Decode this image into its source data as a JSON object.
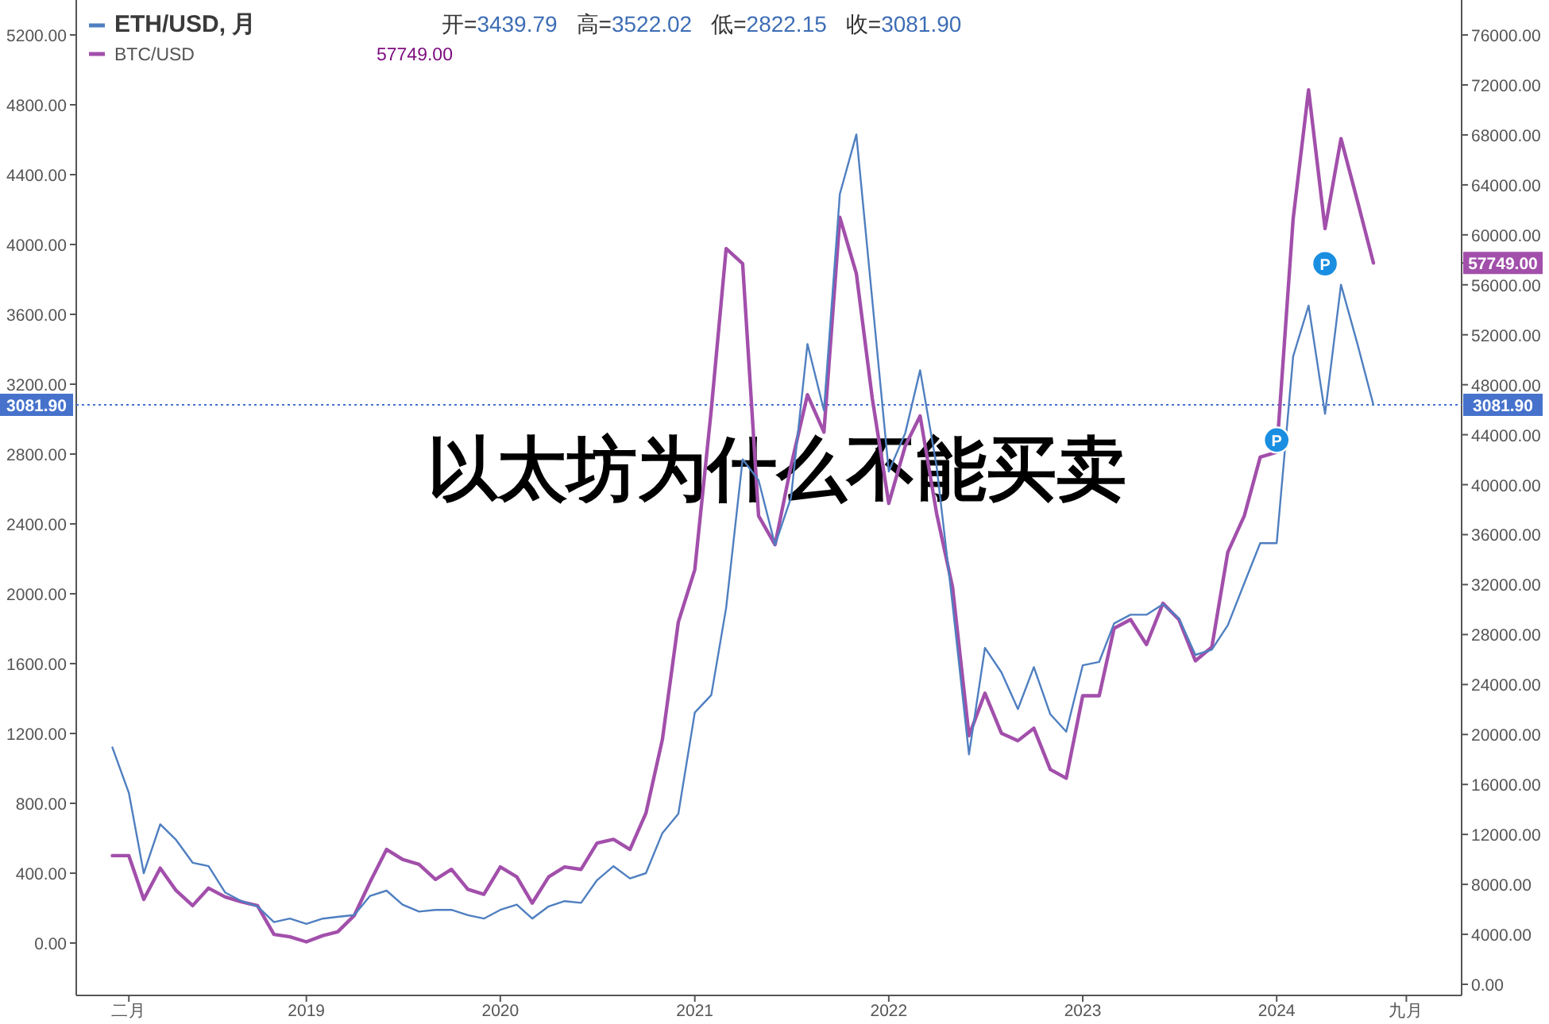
{
  "chart_data": {
    "type": "line",
    "title": "以太坊为什么不能买卖",
    "x": [
      "2018-01",
      "2018-02",
      "2018-03",
      "2018-04",
      "2018-05",
      "2018-06",
      "2018-07",
      "2018-08",
      "2018-09",
      "2018-10",
      "2018-11",
      "2018-12",
      "2019-01",
      "2019-02",
      "2019-03",
      "2019-04",
      "2019-05",
      "2019-06",
      "2019-07",
      "2019-08",
      "2019-09",
      "2019-10",
      "2019-11",
      "2019-12",
      "2020-01",
      "2020-02",
      "2020-03",
      "2020-04",
      "2020-05",
      "2020-06",
      "2020-07",
      "2020-08",
      "2020-09",
      "2020-10",
      "2020-11",
      "2020-12",
      "2021-01",
      "2021-02",
      "2021-03",
      "2021-04",
      "2021-05",
      "2021-06",
      "2021-07",
      "2021-08",
      "2021-09",
      "2021-10",
      "2021-11",
      "2021-12",
      "2022-01",
      "2022-02",
      "2022-03",
      "2022-04",
      "2022-05",
      "2022-06",
      "2022-07",
      "2022-08",
      "2022-09",
      "2022-10",
      "2022-11",
      "2022-12",
      "2023-01",
      "2023-02",
      "2023-03",
      "2023-04",
      "2023-05",
      "2023-06",
      "2023-07",
      "2023-08",
      "2023-09",
      "2023-10",
      "2023-11",
      "2023-12",
      "2024-01",
      "2024-02",
      "2024-03",
      "2024-04",
      "2024-05",
      "2024-06",
      "2024-07"
    ],
    "series": [
      {
        "name": "ETH/USD, 月",
        "color": "#4f7fc0",
        "values": [
          1120,
          860,
          400,
          680,
          590,
          460,
          440,
          290,
          240,
          210,
          120,
          140,
          110,
          140,
          150,
          160,
          270,
          300,
          220,
          180,
          190,
          190,
          160,
          140,
          190,
          220,
          140,
          210,
          240,
          230,
          360,
          440,
          370,
          400,
          630,
          740,
          1320,
          1420,
          1920,
          2770,
          2650,
          2280,
          2550,
          3430,
          3050,
          4290,
          4630,
          3680,
          2700,
          2920,
          3280,
          2730,
          1940,
          1080,
          1690,
          1550,
          1340,
          1580,
          1310,
          1210,
          1590,
          1610,
          1830,
          1880,
          1880,
          1940,
          1860,
          1650,
          1680,
          1820,
          2060,
          2290,
          2290,
          3360,
          3650,
          3030,
          3770,
          3430,
          3081.9
        ]
      },
      {
        "name": "BTC/USD",
        "color": "#a24fab",
        "axis": "y2",
        "values": [
          10300,
          10300,
          6800,
          9300,
          7500,
          6300,
          7700,
          7000,
          6600,
          6300,
          4000,
          3800,
          3400,
          3900,
          4200,
          5500,
          8200,
          10800,
          10000,
          9600,
          8400,
          9200,
          7600,
          7200,
          9400,
          8600,
          6500,
          8600,
          9400,
          9200,
          11300,
          11600,
          10800,
          13700,
          19600,
          29000,
          33200,
          46000,
          58900,
          57700,
          37500,
          35200,
          41500,
          47200,
          44200,
          61400,
          56900,
          46900,
          38500,
          43100,
          45500,
          37700,
          31800,
          19900,
          23300,
          20100,
          19500,
          20500,
          17200,
          16500,
          23100,
          23100,
          28500,
          29200,
          27200,
          30500,
          29200,
          25900,
          27000,
          34600,
          37500,
          42200,
          42600,
          61300,
          71600,
          60500,
          67700,
          62700,
          57749
        ]
      }
    ],
    "xlim": [
      "2017-10-25",
      "2024-12-14"
    ],
    "xticks": [
      {
        "value": "2018-02",
        "label": "二月"
      },
      "2019",
      "2020",
      "2021",
      "2022",
      "2023",
      "2024",
      {
        "value": "2024-09",
        "label": "九月"
      }
    ],
    "ylim": [
      -300,
      5400
    ],
    "yticks": [
      {
        "value": 0,
        "label": "0.00"
      },
      {
        "value": 400,
        "label": "400.00"
      },
      {
        "value": 800,
        "label": "800.00"
      },
      {
        "value": 1200,
        "label": "1200.00"
      },
      {
        "value": 1600,
        "label": "1600.00"
      },
      {
        "value": 2000,
        "label": "2000.00"
      },
      {
        "value": 2400,
        "label": "2400.00"
      },
      {
        "value": 2800,
        "label": "2800.00"
      },
      {
        "value": 3200,
        "label": "3200.00"
      },
      {
        "value": 3600,
        "label": "3600.00"
      },
      {
        "value": 4000,
        "label": "4000.00"
      },
      {
        "value": 4400,
        "label": "4400.00"
      },
      {
        "value": 4800,
        "label": "4800.00"
      },
      {
        "value": 5200,
        "label": "5200.00"
      }
    ],
    "y2lim": [
      -890,
      78800
    ],
    "y2ticks": [
      {
        "value": 0,
        "label": "0.00"
      },
      {
        "value": 4000,
        "label": "4000.00"
      },
      {
        "value": 8000,
        "label": "8000.00"
      },
      {
        "value": 12000,
        "label": "12000.00"
      },
      {
        "value": 16000,
        "label": "16000.00"
      },
      {
        "value": 20000,
        "label": "20000.00"
      },
      {
        "value": 24000,
        "label": "24000.00"
      },
      {
        "value": 28000,
        "label": "28000.00"
      },
      {
        "value": 32000,
        "label": "32000.00"
      },
      {
        "value": 36000,
        "label": "36000.00"
      },
      {
        "value": 40000,
        "label": "40000.00"
      },
      {
        "value": 44000,
        "label": "44000.00"
      },
      {
        "value": 48000,
        "label": "48000.00"
      },
      {
        "value": 52000,
        "label": "52000.00"
      },
      {
        "value": 56000,
        "label": "56000.00"
      },
      {
        "value": 57749,
        "label": "57749.00"
      },
      {
        "value": 60000,
        "label": "60000.00"
      },
      {
        "value": 64000,
        "label": "64000.00"
      },
      {
        "value": 68000,
        "label": "68000.00"
      },
      {
        "value": 72000,
        "label": "72000.00"
      },
      {
        "value": 76000,
        "label": "76000.00"
      }
    ],
    "ref_lines": [
      {
        "axis": "y",
        "value": 3081.9,
        "label": "3081.90",
        "color": "#4672cc",
        "line_style": "dotted"
      }
    ],
    "annotations": [
      "开=3439.79",
      "高=3522.02",
      "低=2822.15",
      "收=3081.90",
      "57749.00",
      {
        "text": "P",
        "x": "2024-01",
        "y": 2880
      },
      {
        "text": "P",
        "x": "2024-04",
        "y": 3890
      }
    ],
    "legend": "top left"
  }
}
